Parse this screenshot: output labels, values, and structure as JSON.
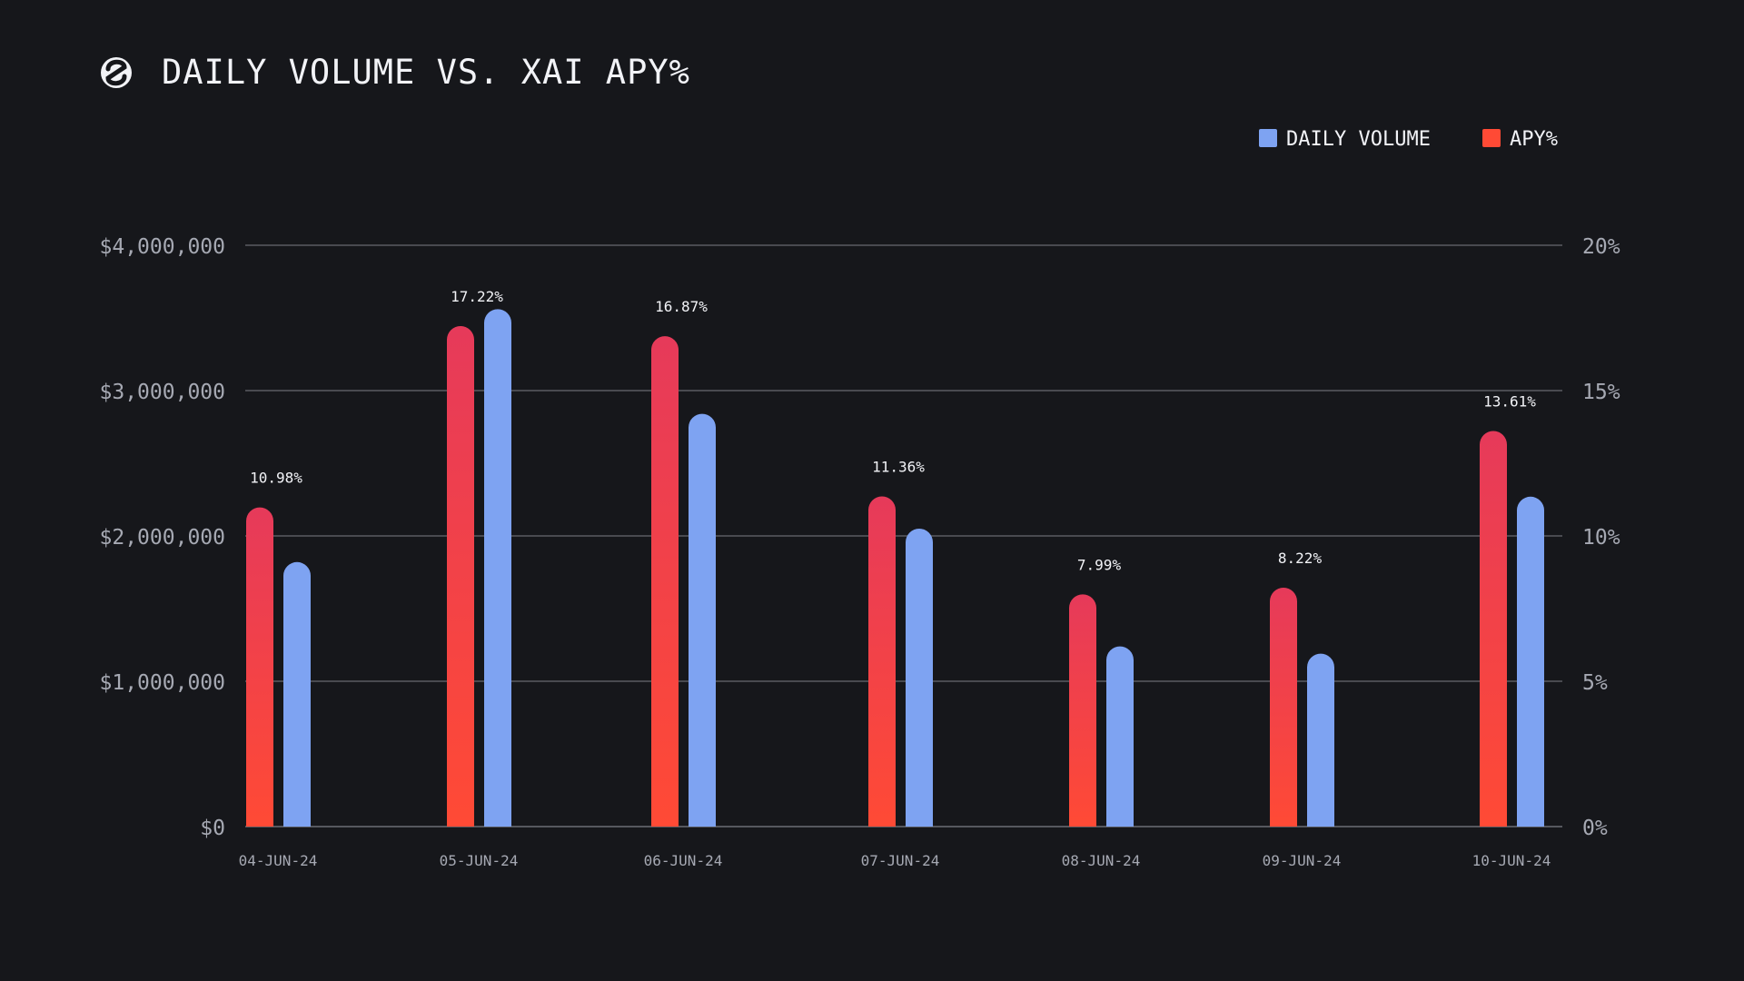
{
  "colors": {
    "background": "#16171b",
    "volume": "#7ea3f2",
    "apy_top": "#e63a5a",
    "apy_bottom": "#ff4a35",
    "legend_apy": "#ff4a35",
    "text": "#f2f3f7",
    "muted_text": "#a6a9b3"
  },
  "logo": {
    "icon": "brand-logo-icon"
  },
  "chart_data": {
    "type": "bar",
    "title": "DAILY VOLUME VS. XAI APY%",
    "categories": [
      "04-JUN-24",
      "05-JUN-24",
      "06-JUN-24",
      "07-JUN-24",
      "08-JUN-24",
      "09-JUN-24",
      "10-JUN-24"
    ],
    "series": [
      {
        "name": "APY%",
        "axis": "right",
        "values": [
          10.98,
          17.22,
          16.87,
          11.36,
          7.99,
          8.22,
          13.61
        ],
        "labels": [
          "10.98%",
          "17.22%",
          "16.87%",
          "11.36%",
          "7.99%",
          "8.22%",
          "13.61%"
        ]
      },
      {
        "name": "DAILY VOLUME",
        "axis": "left",
        "values": [
          1820000,
          3560000,
          2840000,
          2050000,
          1240000,
          1190000,
          2270000
        ]
      }
    ],
    "legend": [
      {
        "name": "DAILY VOLUME",
        "color": "#7ea3f2"
      },
      {
        "name": "APY%",
        "color": "#ff4a35"
      }
    ],
    "legend_position": "top-right",
    "y_left": {
      "ylim": [
        0,
        4000000
      ],
      "ticks": [
        0,
        1000000,
        2000000,
        3000000,
        4000000
      ],
      "tick_labels": [
        "$0",
        "$1,000,000",
        "$2,000,000",
        "$3,000,000",
        "$4,000,000"
      ]
    },
    "y_right": {
      "ylim": [
        0,
        20
      ],
      "ticks": [
        0,
        5,
        10,
        15,
        20
      ],
      "tick_labels": [
        "0%",
        "5%",
        "10%",
        "15%",
        "20%"
      ]
    },
    "grid": true
  }
}
